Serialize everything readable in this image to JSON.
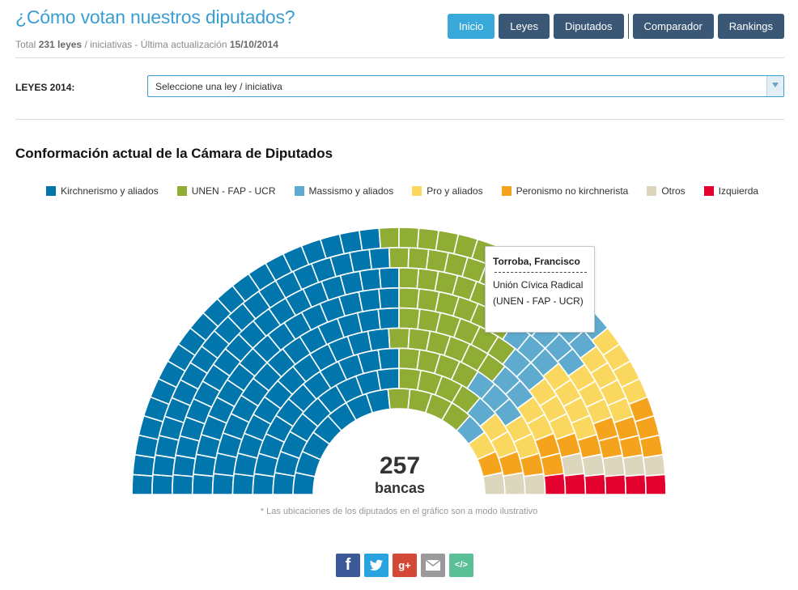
{
  "header": {
    "title": "¿Cómo votan nuestros diputados?",
    "subtitle_prefix": "Total",
    "total_laws": "231 leyes",
    "subtitle_middle": "/ iniciativas - Última actualización",
    "updated": "15/10/2014"
  },
  "nav": {
    "items": [
      {
        "label": "Inicio",
        "active": true
      },
      {
        "label": "Leyes"
      },
      {
        "label": "Diputados"
      },
      {
        "label": "Comparador"
      },
      {
        "label": "Rankings"
      }
    ]
  },
  "filter": {
    "label": "LEYES 2014:",
    "select_value": "Seleccione una ley / iniciativa"
  },
  "section_title": "Conformación actual de la Cámara de Diputados",
  "tooltip": {
    "name": "Torroba, Francisco",
    "block": "Unión Cívica Radical",
    "alliance": "(UNEN - FAP - UCR)"
  },
  "total": {
    "number": "257",
    "label": "bancas"
  },
  "note": "* Las ubicaciones de los diputados en el gráfico son a modo ilustrativo",
  "chart_data": {
    "type": "parliament",
    "title": "Conformación actual de la Cámara de Diputados",
    "total_seats": 257,
    "rows": 9,
    "series": [
      {
        "name": "Kirchnerismo y aliados",
        "seats": 126,
        "color": "#0076ad"
      },
      {
        "name": "UNEN - FAP - UCR",
        "seats": 54,
        "color": "#8fac35"
      },
      {
        "name": "Massismo y aliados",
        "seats": 24,
        "color": "#5fabcf"
      },
      {
        "name": "Pro y aliados",
        "seats": 25,
        "color": "#fad85f"
      },
      {
        "name": "Peronismo no kirchnerista",
        "seats": 14,
        "color": "#f5a31c"
      },
      {
        "name": "Otros",
        "seats": 8,
        "color": "#dcd6bd"
      },
      {
        "name": "Izquierda",
        "seats": 6,
        "color": "#e3002e"
      }
    ]
  },
  "share": {
    "facebook": "f",
    "twitter": "twitter-icon",
    "googleplus": "g+",
    "email": "email-icon",
    "embed": "</>"
  }
}
